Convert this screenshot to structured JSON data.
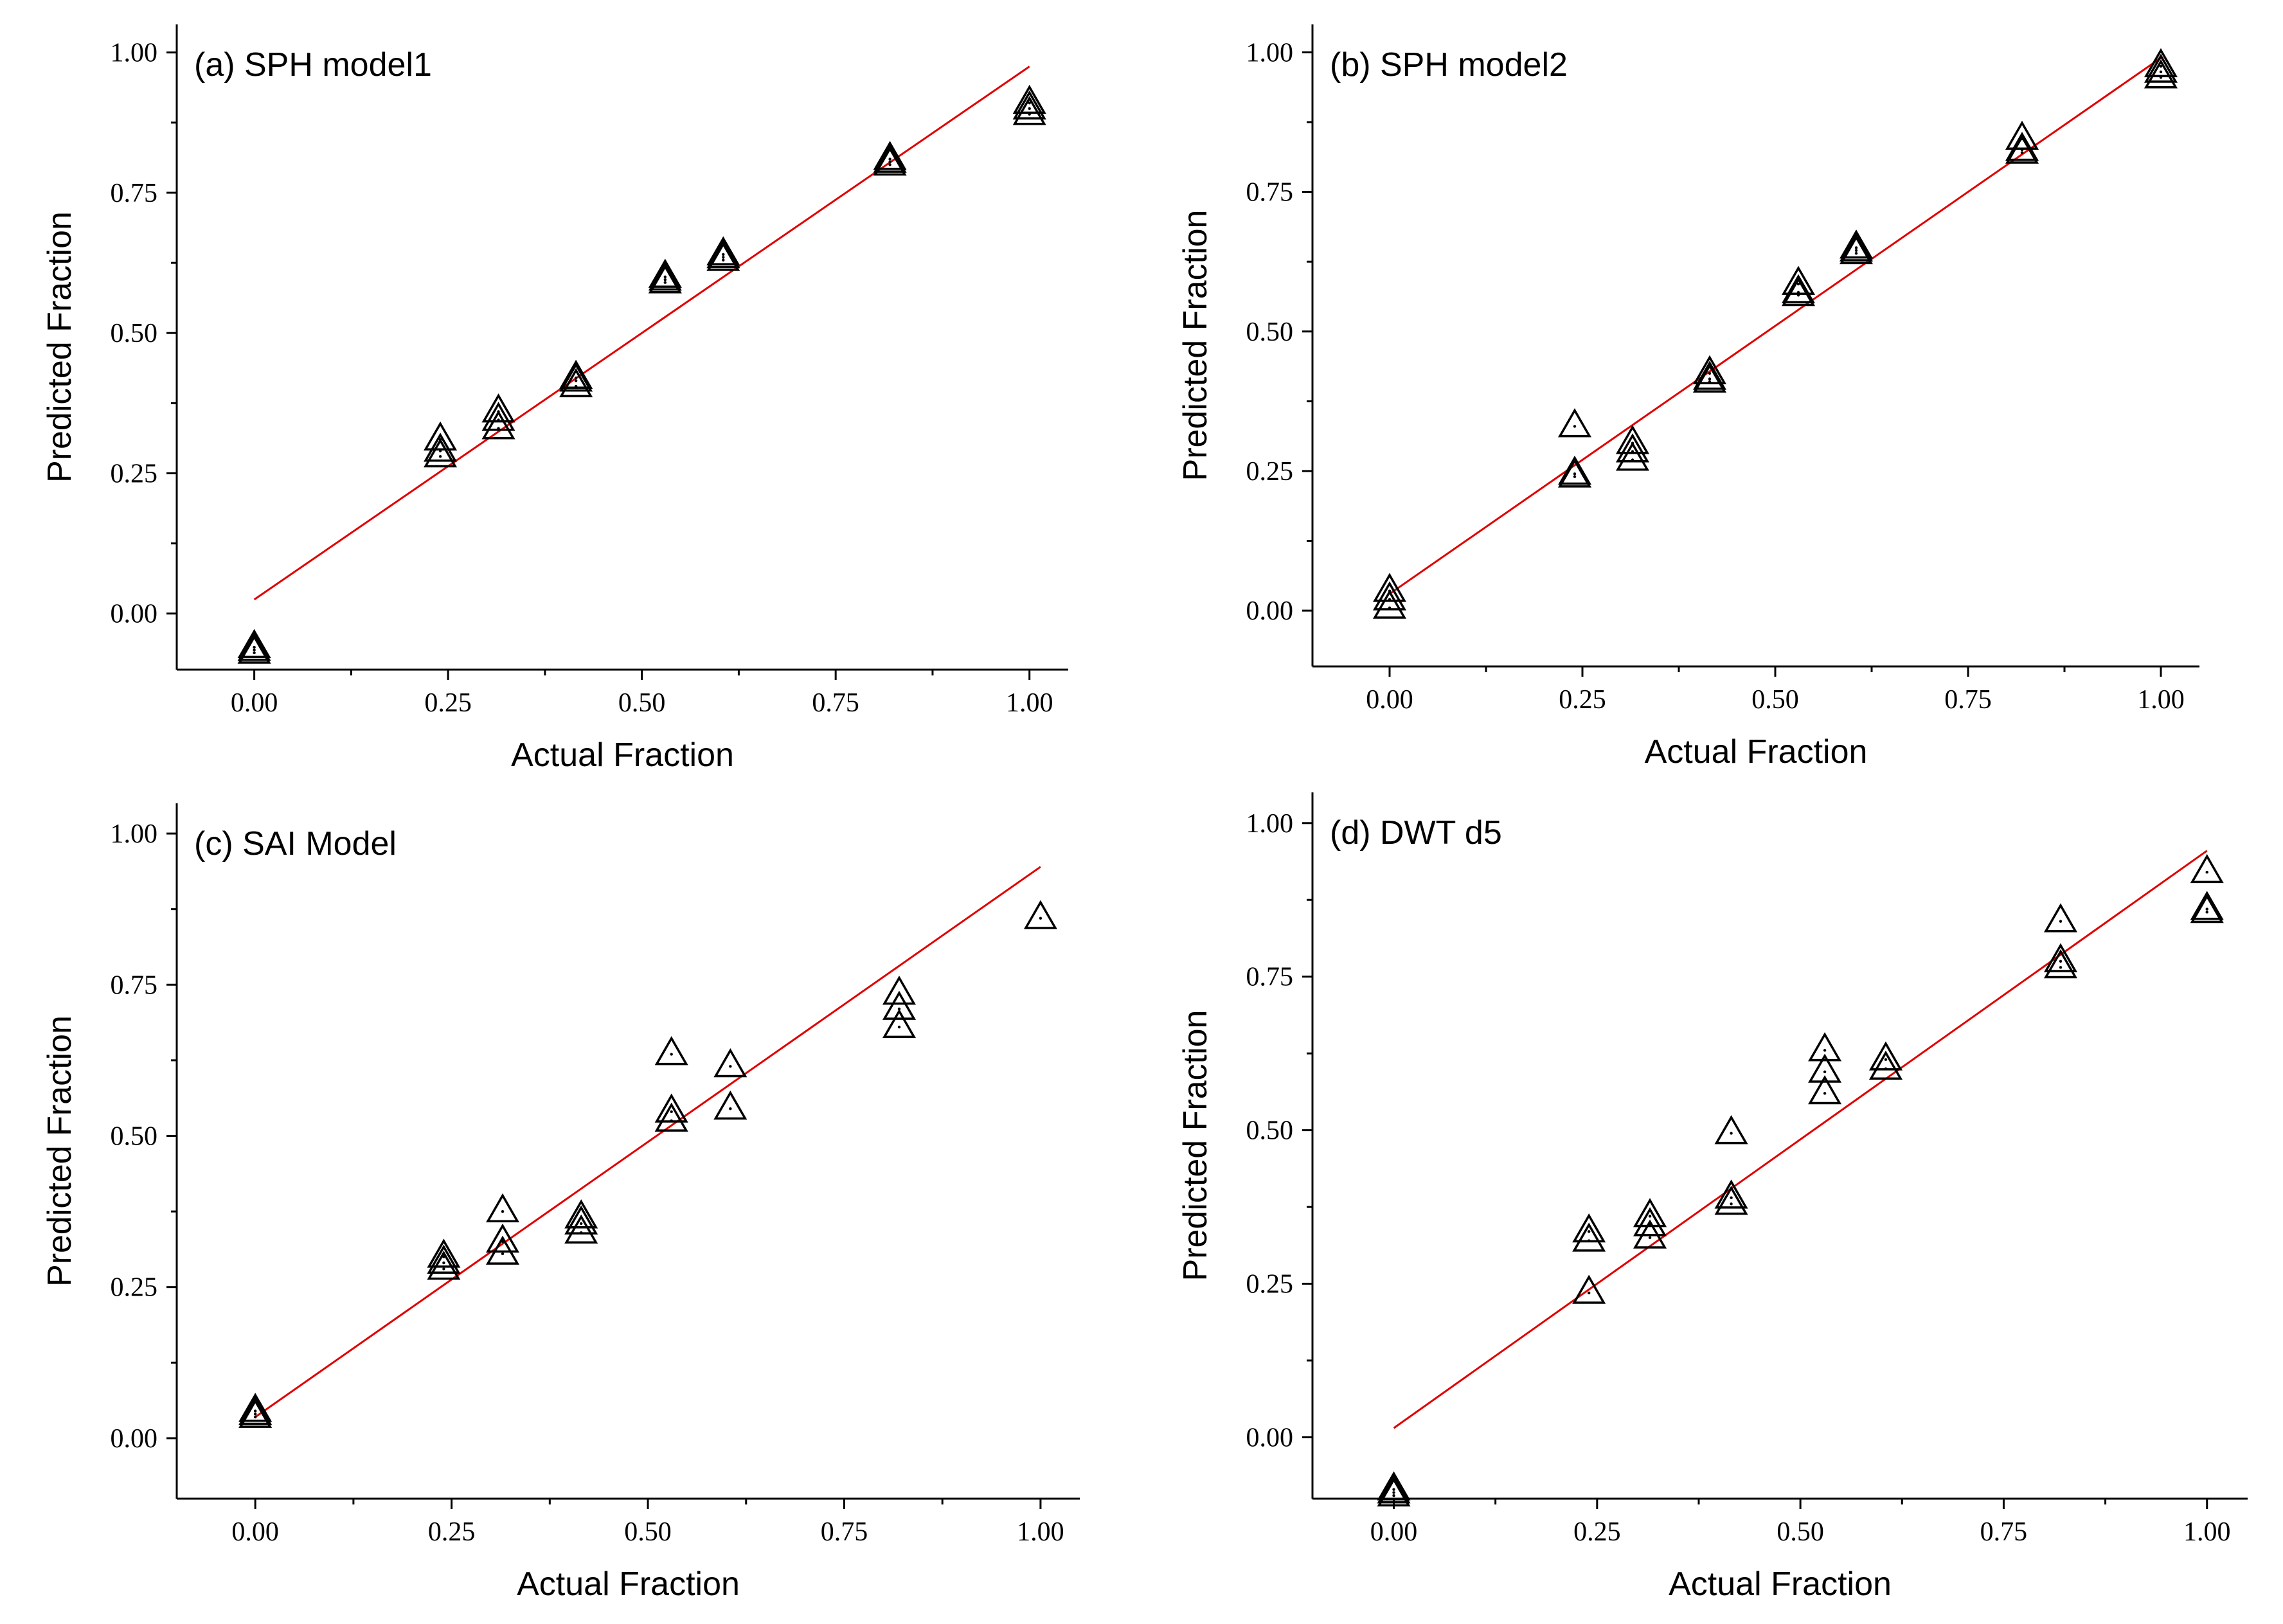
{
  "chart_data": [
    {
      "type": "scatter",
      "title": "(a) SPH model1",
      "xlabel": "Actual Fraction",
      "ylabel": "Predicted Fraction",
      "xlim": [
        -0.1,
        1.05
      ],
      "ylim": [
        -0.1,
        1.05
      ],
      "xticks": [
        "0.00",
        "0.25",
        "0.50",
        "0.75",
        "1.00"
      ],
      "yticks": [
        "0.00",
        "0.25",
        "0.50",
        "0.75",
        "1.00"
      ],
      "grid": false,
      "marker": "open-triangle",
      "fit_line": {
        "color": "#e00000",
        "x": [
          0.0,
          1.0
        ],
        "y": [
          0.025,
          0.975
        ]
      },
      "points": [
        {
          "x": 0.0,
          "y": -0.06
        },
        {
          "x": 0.0,
          "y": -0.065
        },
        {
          "x": 0.0,
          "y": -0.07
        },
        {
          "x": 0.24,
          "y": 0.31
        },
        {
          "x": 0.24,
          "y": 0.29
        },
        {
          "x": 0.24,
          "y": 0.28
        },
        {
          "x": 0.315,
          "y": 0.36
        },
        {
          "x": 0.315,
          "y": 0.345
        },
        {
          "x": 0.315,
          "y": 0.33
        },
        {
          "x": 0.415,
          "y": 0.42
        },
        {
          "x": 0.415,
          "y": 0.415
        },
        {
          "x": 0.415,
          "y": 0.405
        },
        {
          "x": 0.53,
          "y": 0.6
        },
        {
          "x": 0.53,
          "y": 0.595
        },
        {
          "x": 0.53,
          "y": 0.59
        },
        {
          "x": 0.605,
          "y": 0.64
        },
        {
          "x": 0.605,
          "y": 0.635
        },
        {
          "x": 0.605,
          "y": 0.63
        },
        {
          "x": 0.82,
          "y": 0.81
        },
        {
          "x": 0.82,
          "y": 0.805
        },
        {
          "x": 0.82,
          "y": 0.8
        },
        {
          "x": 1.0,
          "y": 0.91
        },
        {
          "x": 1.0,
          "y": 0.9
        },
        {
          "x": 1.0,
          "y": 0.89
        }
      ]
    },
    {
      "type": "scatter",
      "title": "(b) SPH model2",
      "xlabel": "Actual Fraction",
      "ylabel": "Predicted Fraction",
      "xlim": [
        -0.1,
        1.05
      ],
      "ylim": [
        -0.1,
        1.05
      ],
      "xticks": [
        "0.00",
        "0.25",
        "0.50",
        "0.75",
        "1.00"
      ],
      "yticks": [
        "0.00",
        "0.25",
        "0.50",
        "0.75",
        "1.00"
      ],
      "grid": false,
      "marker": "open-triangle",
      "fit_line": {
        "color": "#e00000",
        "x": [
          0.0,
          1.0
        ],
        "y": [
          0.03,
          0.99
        ]
      },
      "points": [
        {
          "x": 0.0,
          "y": 0.035
        },
        {
          "x": 0.0,
          "y": 0.02
        },
        {
          "x": 0.0,
          "y": 0.005
        },
        {
          "x": 0.24,
          "y": 0.33
        },
        {
          "x": 0.24,
          "y": 0.245
        },
        {
          "x": 0.24,
          "y": 0.24
        },
        {
          "x": 0.315,
          "y": 0.3
        },
        {
          "x": 0.315,
          "y": 0.285
        },
        {
          "x": 0.315,
          "y": 0.27
        },
        {
          "x": 0.415,
          "y": 0.425
        },
        {
          "x": 0.415,
          "y": 0.415
        },
        {
          "x": 0.415,
          "y": 0.41
        },
        {
          "x": 0.53,
          "y": 0.585
        },
        {
          "x": 0.53,
          "y": 0.57
        },
        {
          "x": 0.53,
          "y": 0.565
        },
        {
          "x": 0.605,
          "y": 0.65
        },
        {
          "x": 0.605,
          "y": 0.645
        },
        {
          "x": 0.605,
          "y": 0.64
        },
        {
          "x": 0.82,
          "y": 0.845
        },
        {
          "x": 0.82,
          "y": 0.825
        },
        {
          "x": 0.82,
          "y": 0.82
        },
        {
          "x": 1.0,
          "y": 0.975
        },
        {
          "x": 1.0,
          "y": 0.965
        },
        {
          "x": 1.0,
          "y": 0.955
        }
      ]
    },
    {
      "type": "scatter",
      "title": "(c) SAI Model",
      "xlabel": "Actual Fraction",
      "ylabel": "Predicted Fraction",
      "xlim": [
        -0.1,
        1.05
      ],
      "ylim": [
        -0.1,
        1.05
      ],
      "xticks": [
        "0.00",
        "0.25",
        "0.50",
        "0.75",
        "1.00"
      ],
      "yticks": [
        "0.00",
        "0.25",
        "0.50",
        "0.75",
        "1.00"
      ],
      "grid": false,
      "marker": "open-triangle",
      "fit_line": {
        "color": "#e00000",
        "x": [
          0.0,
          1.0
        ],
        "y": [
          0.035,
          0.945
        ]
      },
      "points": [
        {
          "x": 0.0,
          "y": 0.045
        },
        {
          "x": 0.0,
          "y": 0.04
        },
        {
          "x": 0.0,
          "y": 0.035
        },
        {
          "x": 0.24,
          "y": 0.3
        },
        {
          "x": 0.24,
          "y": 0.29
        },
        {
          "x": 0.24,
          "y": 0.28
        },
        {
          "x": 0.315,
          "y": 0.375
        },
        {
          "x": 0.315,
          "y": 0.325
        },
        {
          "x": 0.315,
          "y": 0.305
        },
        {
          "x": 0.415,
          "y": 0.365
        },
        {
          "x": 0.415,
          "y": 0.355
        },
        {
          "x": 0.415,
          "y": 0.34
        },
        {
          "x": 0.53,
          "y": 0.635
        },
        {
          "x": 0.53,
          "y": 0.54
        },
        {
          "x": 0.53,
          "y": 0.525
        },
        {
          "x": 0.605,
          "y": 0.615
        },
        {
          "x": 0.605,
          "y": 0.545
        },
        {
          "x": 0.82,
          "y": 0.735
        },
        {
          "x": 0.82,
          "y": 0.71
        },
        {
          "x": 0.82,
          "y": 0.68
        },
        {
          "x": 1.0,
          "y": 0.86
        }
      ]
    },
    {
      "type": "scatter",
      "title": "(d) DWT d5",
      "xlabel": "Actual Fraction",
      "ylabel": "Predicted Fraction",
      "xlim": [
        -0.1,
        1.05
      ],
      "ylim": [
        -0.1,
        1.05
      ],
      "xticks": [
        "0.00",
        "0.25",
        "0.50",
        "0.75",
        "1.00"
      ],
      "yticks": [
        "0.00",
        "0.25",
        "0.50",
        "0.75",
        "1.00"
      ],
      "grid": false,
      "marker": "open-triangle",
      "fit_line": {
        "color": "#e00000",
        "x": [
          0.0,
          1.0
        ],
        "y": [
          0.015,
          0.955
        ]
      },
      "points": [
        {
          "x": 0.0,
          "y": -0.085
        },
        {
          "x": 0.0,
          "y": -0.09
        },
        {
          "x": 0.0,
          "y": -0.095
        },
        {
          "x": 0.24,
          "y": 0.335
        },
        {
          "x": 0.24,
          "y": 0.32
        },
        {
          "x": 0.24,
          "y": 0.235
        },
        {
          "x": 0.315,
          "y": 0.36
        },
        {
          "x": 0.315,
          "y": 0.345
        },
        {
          "x": 0.315,
          "y": 0.325
        },
        {
          "x": 0.415,
          "y": 0.495
        },
        {
          "x": 0.415,
          "y": 0.39
        },
        {
          "x": 0.415,
          "y": 0.38
        },
        {
          "x": 0.53,
          "y": 0.63
        },
        {
          "x": 0.53,
          "y": 0.595
        },
        {
          "x": 0.53,
          "y": 0.56
        },
        {
          "x": 0.605,
          "y": 0.615
        },
        {
          "x": 0.605,
          "y": 0.6
        },
        {
          "x": 0.82,
          "y": 0.84
        },
        {
          "x": 0.82,
          "y": 0.775
        },
        {
          "x": 0.82,
          "y": 0.765
        },
        {
          "x": 1.0,
          "y": 0.92
        },
        {
          "x": 1.0,
          "y": 0.86
        },
        {
          "x": 1.0,
          "y": 0.855
        }
      ]
    }
  ]
}
